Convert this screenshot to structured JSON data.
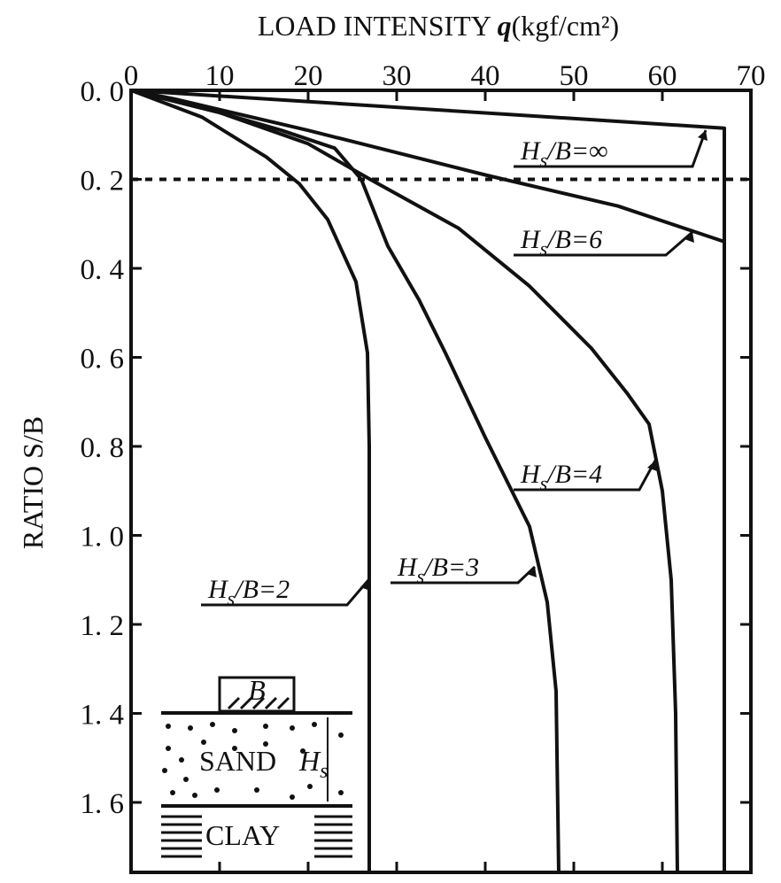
{
  "chart_data": {
    "type": "line",
    "title": "LOAD INTENSITY q (kgf/cm²)",
    "title_parts": {
      "text": "LOAD INTENSITY ",
      "var": "q",
      "unit": "(kgf/cm²)"
    },
    "xlabel": "LOAD INTENSITY q (kgf/cm²)",
    "ylabel": "RATIO S/B",
    "xlim": [
      0,
      70
    ],
    "ylim": [
      0,
      1.76
    ],
    "y_inverted": true,
    "x_axis_position": "top",
    "xticks": [
      0,
      10,
      20,
      30,
      40,
      50,
      60,
      70
    ],
    "xtick_labels": [
      "0",
      "10",
      "20",
      "30",
      "40",
      "50",
      "60",
      "70"
    ],
    "yticks": [
      0,
      0.2,
      0.4,
      0.6,
      0.8,
      1.0,
      1.2,
      1.4,
      1.6
    ],
    "ytick_labels": [
      "0. 0",
      "0. 2",
      "0. 4",
      "0. 6",
      "0. 8",
      "1. 0",
      "1. 2",
      "1. 4",
      "1. 6"
    ],
    "grid": false,
    "reference_line": {
      "style": "dashed",
      "y": 0.2
    },
    "series": [
      {
        "name": "Hs/B=∞",
        "x": [
          0,
          67,
          67
        ],
        "y": [
          0,
          0.085,
          1.76
        ]
      },
      {
        "name": "Hs/B=6",
        "x": [
          0,
          5,
          20,
          40,
          55,
          67,
          67
        ],
        "y": [
          0,
          0.02,
          0.09,
          0.19,
          0.26,
          0.34,
          1.76
        ]
      },
      {
        "name": "Hs/B=4",
        "x": [
          0,
          10,
          20,
          27,
          37,
          45,
          52,
          56,
          58.5,
          60,
          61,
          61.5,
          61.7
        ],
        "y": [
          0,
          0.05,
          0.12,
          0.2,
          0.31,
          0.44,
          0.58,
          0.68,
          0.75,
          0.9,
          1.1,
          1.4,
          1.76
        ]
      },
      {
        "name": "Hs/B=3",
        "x": [
          0,
          10,
          17,
          23,
          26,
          29,
          32.5,
          35.5,
          40,
          45,
          47,
          48,
          48.3
        ],
        "y": [
          0,
          0.05,
          0.09,
          0.13,
          0.2,
          0.35,
          0.47,
          0.59,
          0.78,
          0.98,
          1.15,
          1.35,
          1.76
        ]
      },
      {
        "name": "Hs/B=2",
        "x": [
          0,
          8,
          15.3,
          19,
          22.2,
          25.4,
          26.7,
          26.9,
          26.9
        ],
        "y": [
          0,
          0.06,
          0.15,
          0.21,
          0.29,
          0.43,
          0.59,
          0.8,
          1.76
        ]
      }
    ],
    "annotations": [
      {
        "series": "Hs/B=∞",
        "label": "Hs/B=∞",
        "main": "H",
        "sub": "s",
        "rest": "/B=∞"
      },
      {
        "series": "Hs/B=6",
        "label": "Hs/B=6",
        "main": "H",
        "sub": "s",
        "rest": "/B=6"
      },
      {
        "series": "Hs/B=4",
        "label": "Hs/B=4",
        "main": "H",
        "sub": "s",
        "rest": "/B=4"
      },
      {
        "series": "Hs/B=3",
        "label": "Hs/B=3",
        "main": "H",
        "sub": "s",
        "rest": "/B=3"
      },
      {
        "series": "Hs/B=2",
        "label": "Hs/B=2",
        "main": "H",
        "sub": "s",
        "rest": "/B=2"
      }
    ],
    "line_color": "#111111",
    "inset": {
      "footing": "B",
      "sand": "SAND",
      "thickness_main": "H",
      "thickness_sub": "s",
      "clay": "CLAY"
    }
  }
}
